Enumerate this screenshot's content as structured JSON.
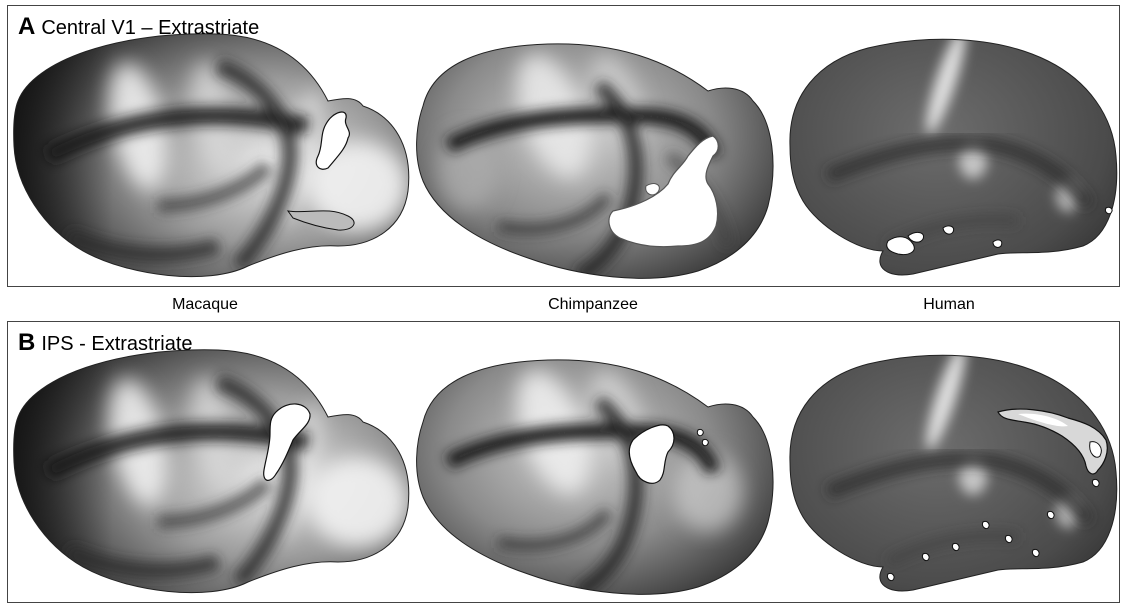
{
  "panels": [
    {
      "letter": "A",
      "title": "Central V1 – Extrastriate"
    },
    {
      "letter": "B",
      "title": "IPS - Extrastriate"
    }
  ],
  "species": [
    "Macaque",
    "Chimpanzee",
    "Human"
  ]
}
